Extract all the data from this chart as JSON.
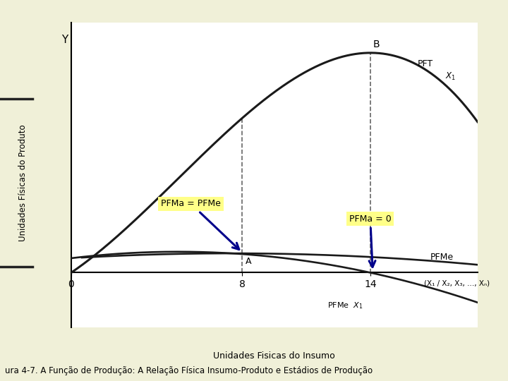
{
  "bg_color": "#f0f0d8",
  "panel_color": "#ffffff",
  "left_panel_color": "#c8c89a",
  "title": "ura 4-7. A Função de Produção: A Relação Física Insumo-Produto e Estádios de Produção",
  "xlabel": "Unidades Fisicas do Insumo",
  "ylabel_rotated": "Unidades Físicas do Produto",
  "x_label_axis": "(X₁ / X₂, X₃, ..., Xₙ)",
  "x_label_below": "PFMe  X₁",
  "y_label_axis": "Y",
  "x_ticks": [
    0,
    8,
    14
  ],
  "x_max": 19,
  "y_min": -0.22,
  "y_max": 1.0,
  "pft_label": "PFT",
  "pft_x1_label": "X₁",
  "pfme_label": "PFMe",
  "pfme_x1_label": "X₁",
  "pfma_pfme_label": "PFMa = PFMe",
  "pfma_0_label": "PFMa = 0",
  "point_A_label": "A",
  "point_B_label": "B",
  "line_color": "#1a1a1a",
  "dashed_color": "#666666",
  "arrow_color": "#00008B",
  "annotation_bg": "#ffff88"
}
